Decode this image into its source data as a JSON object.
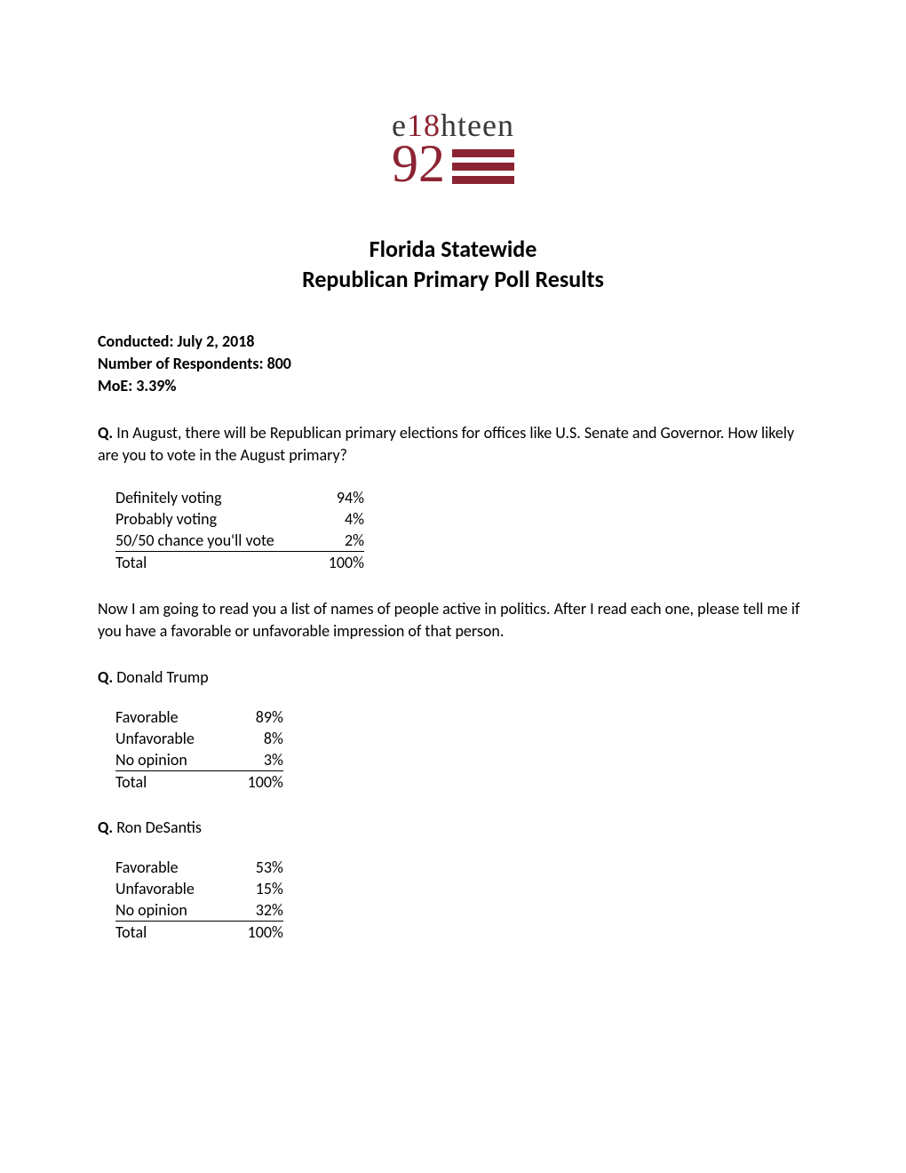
{
  "logo": {
    "top_prefix": "e",
    "top_red": "18",
    "top_suffix": "hteen",
    "number": "92",
    "bar_color": "#8b2332"
  },
  "title": {
    "line1": "Florida Statewide",
    "line2": "Republican Primary Poll Results"
  },
  "meta": {
    "conducted": "Conducted: July 2, 2018",
    "respondents": "Number of Respondents: 800",
    "moe": "MoE: 3.39%"
  },
  "q1": {
    "label": "Q.",
    "text": " In August, there will be Republican primary elections for offices like U.S. Senate and Governor. How likely are you to vote in the August primary?",
    "rows": [
      {
        "label": "Definitely voting",
        "value": "94%"
      },
      {
        "label": "Probably voting",
        "value": "4%"
      },
      {
        "label": "50/50 chance you'll vote",
        "value": "2%"
      }
    ],
    "total_label": "Total",
    "total_value": "100%"
  },
  "intro": "Now I am going to read you a list of names of people active in politics. After I read each one, please tell me if you have a favorable or unfavorable impression of that person.",
  "q2": {
    "label": "Q.",
    "name": " Donald Trump",
    "rows": [
      {
        "label": "Favorable",
        "value": "89%"
      },
      {
        "label": "Unfavorable",
        "value": "8%"
      },
      {
        "label": "No opinion",
        "value": "3%"
      }
    ],
    "total_label": "Total",
    "total_value": "100%"
  },
  "q3": {
    "label": "Q.",
    "name": " Ron DeSantis",
    "rows": [
      {
        "label": "Favorable",
        "value": "53%"
      },
      {
        "label": "Unfavorable",
        "value": "15%"
      },
      {
        "label": "No opinion",
        "value": "32%"
      }
    ],
    "total_label": "Total",
    "total_value": "100%"
  }
}
